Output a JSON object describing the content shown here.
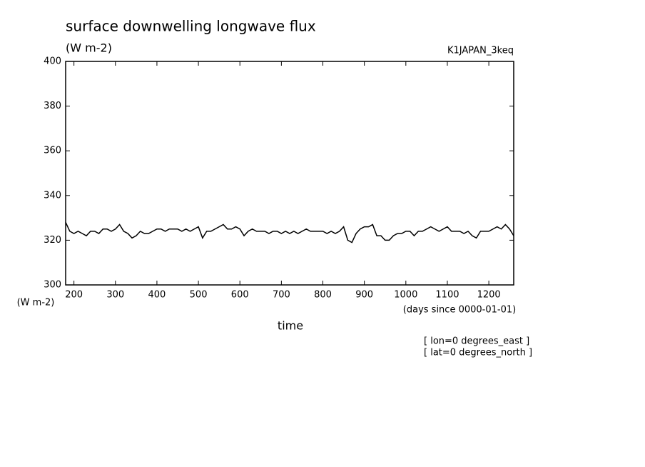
{
  "chart_data": {
    "type": "line",
    "title": "surface downwelling longwave flux",
    "units": "(W m-2)",
    "dataset": "K1JAPAN_3keq",
    "y_axis_units": "(W m-2)",
    "x_axis_units": "(days since 0000-01-01)",
    "x_label": "time",
    "notes": [
      "[ lon=0 degrees_east ]",
      "[ lat=0 degrees_north ]"
    ],
    "x": [
      180,
      190,
      200,
      210,
      220,
      230,
      240,
      250,
      260,
      270,
      280,
      290,
      300,
      310,
      320,
      330,
      340,
      350,
      360,
      370,
      380,
      390,
      400,
      410,
      420,
      430,
      440,
      450,
      460,
      470,
      480,
      490,
      500,
      510,
      520,
      530,
      540,
      550,
      560,
      570,
      580,
      590,
      600,
      610,
      620,
      630,
      640,
      650,
      660,
      670,
      680,
      690,
      700,
      710,
      720,
      730,
      740,
      750,
      760,
      770,
      780,
      790,
      800,
      810,
      820,
      830,
      840,
      850,
      860,
      870,
      880,
      890,
      900,
      910,
      920,
      930,
      940,
      950,
      960,
      970,
      980,
      990,
      1000,
      1010,
      1020,
      1030,
      1040,
      1050,
      1060,
      1070,
      1080,
      1090,
      1100,
      1110,
      1120,
      1130,
      1140,
      1150,
      1160,
      1170,
      1180,
      1190,
      1200,
      1210,
      1220,
      1230,
      1240,
      1250,
      1260
    ],
    "series": [
      {
        "color": "#000000",
        "values": [
          328,
          324,
          323,
          324,
          323,
          322,
          324,
          324,
          323,
          325,
          325,
          324,
          325,
          327,
          324,
          323,
          321,
          322,
          324,
          323,
          323,
          324,
          325,
          325,
          324,
          325,
          325,
          325,
          324,
          325,
          324,
          325,
          326,
          321,
          324,
          324,
          325,
          326,
          327,
          325,
          325,
          326,
          325,
          322,
          324,
          325,
          324,
          324,
          324,
          323,
          324,
          324,
          323,
          324,
          323,
          324,
          323,
          324,
          325,
          324,
          324,
          324,
          324,
          323,
          324,
          323,
          324,
          326,
          320,
          319,
          323,
          325,
          326,
          326,
          327,
          322,
          322,
          320,
          320,
          322,
          323,
          323,
          324,
          324,
          322,
          324,
          324,
          325,
          326,
          325,
          324,
          325,
          326,
          324,
          324,
          324,
          323,
          324,
          322,
          321,
          324,
          324,
          324,
          325,
          326,
          325,
          327,
          325,
          322
        ]
      }
    ],
    "xlim": [
      180,
      1260
    ],
    "ylim": [
      300,
      400
    ],
    "xticks": [
      200,
      300,
      400,
      500,
      600,
      700,
      800,
      900,
      1000,
      1100,
      1200
    ],
    "yticks": [
      300,
      320,
      340,
      360,
      380,
      400
    ]
  }
}
